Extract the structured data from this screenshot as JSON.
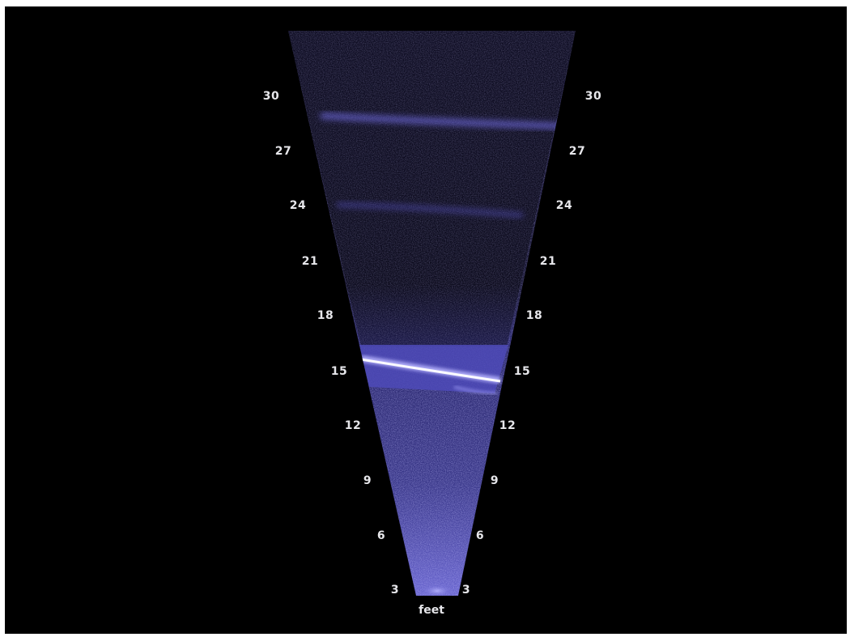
{
  "display": {
    "unit": "feet",
    "background_color": "#000000",
    "label_color": "#e6e6ea",
    "beam_color": "#8b86ff",
    "highlight_color": "#ffffff",
    "range_ticks_left": [
      "30",
      "27",
      "24",
      "21",
      "18",
      "15",
      "12",
      "9",
      "6",
      "3"
    ],
    "range_ticks_right": [
      "30",
      "27",
      "24",
      "21",
      "18",
      "15",
      "12",
      "9",
      "6",
      "3"
    ]
  }
}
